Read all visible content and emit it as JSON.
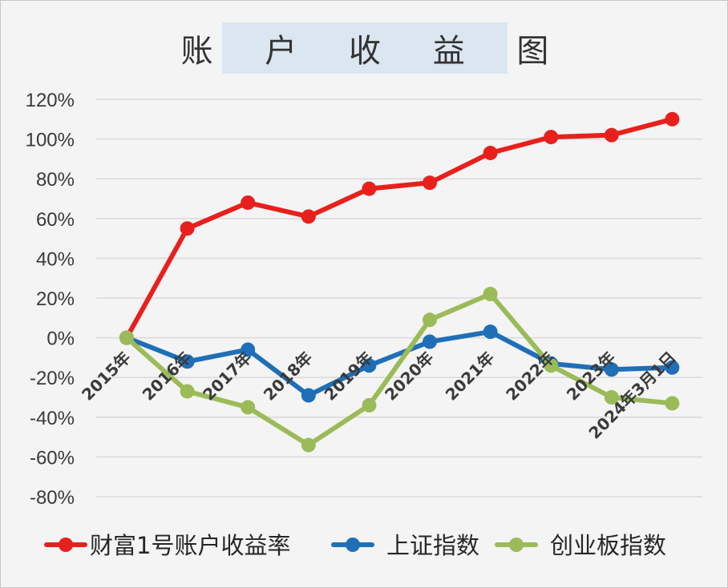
{
  "chart_data": {
    "type": "line",
    "title": "账 户 收 益 图",
    "categories": [
      "2015年",
      "2016年",
      "2017年",
      "2018年",
      "2019年",
      "2020年",
      "2021年",
      "2022年",
      "2023年",
      "2024年3月1日"
    ],
    "ylim": [
      -80,
      120
    ],
    "ytick_labels": [
      "120%",
      "100%",
      "80%",
      "60%",
      "40%",
      "20%",
      "0%",
      "-20%",
      "-40%",
      "-60%",
      "-80%"
    ],
    "grid": true,
    "legend_position": "bottom",
    "series": [
      {
        "name": "财富1号账户收益率",
        "color": "#e8201c",
        "values": [
          0,
          55,
          68,
          61,
          75,
          78,
          93,
          101,
          102,
          110
        ]
      },
      {
        "name": "上证指数",
        "color": "#1e6fb8",
        "values": [
          0,
          -12,
          -6,
          -29,
          -14,
          -2,
          3,
          -13,
          -16,
          -15
        ]
      },
      {
        "name": "创业板指数",
        "color": "#9bbb59",
        "values": [
          0,
          -27,
          -35,
          -54,
          -34,
          9,
          22,
          -14,
          -30,
          -33
        ]
      }
    ]
  }
}
